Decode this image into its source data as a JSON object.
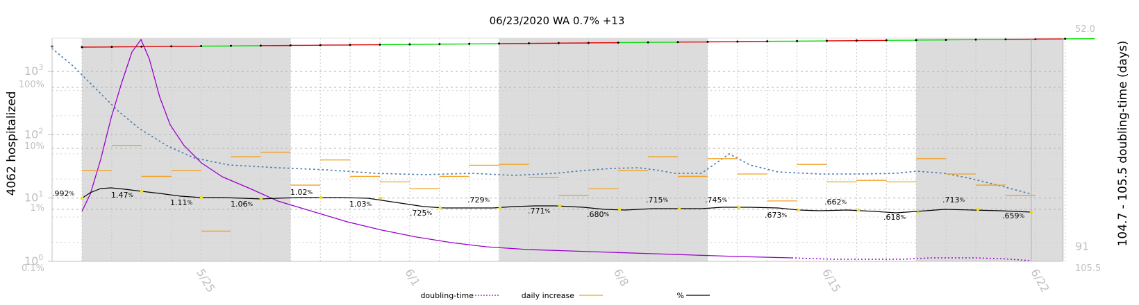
{
  "chart_data": {
    "type": "line",
    "title": "06/23/2020 WA 0.7% +13",
    "ylabel_left": "4062 hospitalized",
    "ylabel_right": "104.7 - 105.5 doubling-time (days)",
    "y_log_ticks": [
      "10",
      "10",
      "10",
      "10"
    ],
    "y_log_exponents": [
      "0",
      "1",
      "2",
      "3"
    ],
    "pct_ticks": [
      "100%",
      "10%",
      "1%",
      "0.1%"
    ],
    "right_ticks": [
      "52.0",
      "91",
      "105.5"
    ],
    "x_ticks": [
      "5/25",
      "6/1",
      "6/8",
      "6/15",
      "6/22"
    ],
    "x_tick_day_index": [
      4,
      11,
      18,
      25,
      32
    ],
    "days": [
      "5/21",
      "5/22",
      "5/23",
      "5/24",
      "5/25",
      "5/26",
      "5/27",
      "5/28",
      "5/29",
      "5/30",
      "5/31",
      "6/1",
      "6/2",
      "6/3",
      "6/4",
      "6/5",
      "6/6",
      "6/7",
      "6/8",
      "6/9",
      "6/10",
      "6/11",
      "6/12",
      "6/13",
      "6/14",
      "6/15",
      "6/16",
      "6/17",
      "6/18",
      "6/19",
      "6/20",
      "6/21",
      "6/22",
      "6/23"
    ],
    "weekend_shading": [
      [
        1,
        8
      ],
      [
        15,
        22
      ],
      [
        29,
        33.95
      ]
    ],
    "series": [
      {
        "name": "%",
        "color": "#000000",
        "values": [
          0.992,
          1.47,
          1.11,
          1.06,
          1.02,
          1.03,
          0.725,
          0.729,
          0.771,
          0.68,
          0.715,
          0.745,
          0.673,
          0.662,
          0.618,
          0.713,
          0.659
        ]
      },
      {
        "name": "daily increase",
        "color": "#f0a020",
        "values": [
          27,
          68,
          22,
          27,
          3,
          45,
          53,
          16,
          40,
          22,
          18,
          14,
          22,
          33,
          34,
          21,
          11,
          14,
          27,
          45,
          22,
          42,
          24,
          9,
          34,
          18,
          19,
          18,
          42,
          24,
          16,
          11
        ]
      },
      {
        "name": "doubling-time",
        "color": "#9900cc",
        "values": [
          70,
          58,
          52,
          65,
          75,
          79,
          82,
          85,
          87,
          89,
          91,
          93,
          95,
          96,
          97,
          98,
          99,
          100,
          101,
          101.5,
          102,
          102.5,
          103,
          103.5,
          104,
          104.2,
          104.5,
          104.7,
          105,
          105.3,
          105.5
        ]
      }
    ],
    "pct_labels": [
      ".992%",
      "1.47%",
      "1.11%",
      "1.06%",
      "1.02%",
      "1.03%",
      ".725%",
      ".729%",
      ".771%",
      ".680%",
      ".715%",
      ".745%",
      ".673%",
      ".662%",
      ".618%",
      ".713%",
      ".659%"
    ],
    "legend": [
      {
        "label": "doubling-time",
        "color": "#9900cc",
        "style": "dotted"
      },
      {
        "label": "daily increase",
        "color": "#f0a020",
        "style": "solid"
      },
      {
        "label": "%",
        "color": "#000000",
        "style": "solid"
      }
    ],
    "legend_position": "bottom",
    "grid": true
  }
}
